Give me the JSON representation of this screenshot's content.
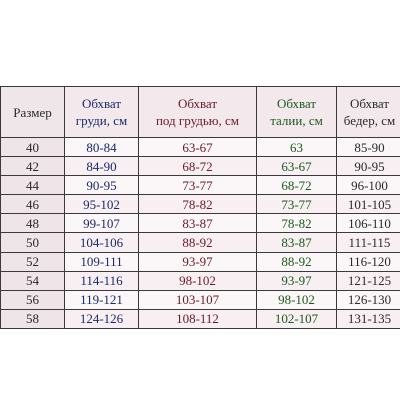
{
  "table": {
    "headers": [
      {
        "lines": [
          "Размер"
        ]
      },
      {
        "lines": [
          "Обхват",
          "груди, см"
        ]
      },
      {
        "lines": [
          "Обхват",
          "под грудью, см"
        ]
      },
      {
        "lines": [
          "Обхват",
          "талии, см"
        ]
      },
      {
        "lines": [
          "Обхват",
          "бедер, см"
        ]
      }
    ],
    "rows": [
      [
        "40",
        "80-84",
        "63-67",
        "63",
        "85-90"
      ],
      [
        "42",
        "84-90",
        "68-72",
        "63-67",
        "90-95"
      ],
      [
        "44",
        "90-95",
        "73-77",
        "68-72",
        "96-100"
      ],
      [
        "46",
        "95-102",
        "78-82",
        "73-77",
        "101-105"
      ],
      [
        "48",
        "99-107",
        "83-87",
        "78-82",
        "106-110"
      ],
      [
        "50",
        "104-106",
        "88-92",
        "83-87",
        "111-115"
      ],
      [
        "52",
        "109-111",
        "93-97",
        "88-92",
        "116-120"
      ],
      [
        "54",
        "114-116",
        "98-102",
        "93-97",
        "121-125"
      ],
      [
        "56",
        "119-121",
        "103-107",
        "98-102",
        "126-130"
      ],
      [
        "58",
        "124-126",
        "108-112",
        "102-107",
        "131-135"
      ]
    ]
  },
  "colors": {
    "border": "#3a3a3a",
    "bust_text": "#1a2a6a",
    "underbust_text": "#6a1a2a",
    "waist_text": "#1c5a1c",
    "header_bg": "#f3e9ec"
  }
}
